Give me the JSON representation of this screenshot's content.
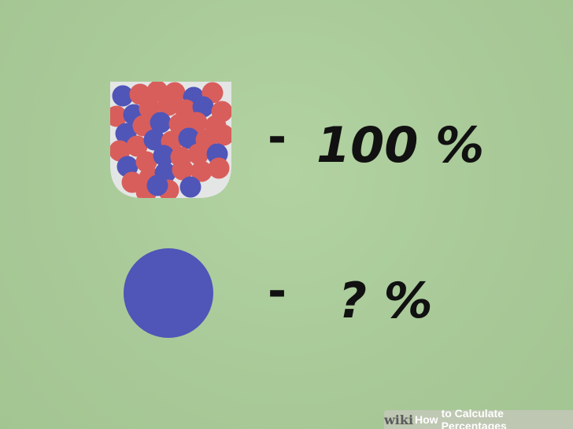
{
  "illustration": {
    "row_whole": {
      "dash": "-",
      "label": "100 %"
    },
    "row_part": {
      "dash": "-",
      "label": "? %"
    }
  },
  "colors": {
    "background": "#a9ca98",
    "red_ball": "#d85e5c",
    "blue_ball": "#5055b8",
    "jar": "#e4e6e6",
    "ink": "#111111"
  },
  "watermark": {
    "logo": "wiki",
    "how": "How",
    "title": "to Calculate Percentages"
  }
}
